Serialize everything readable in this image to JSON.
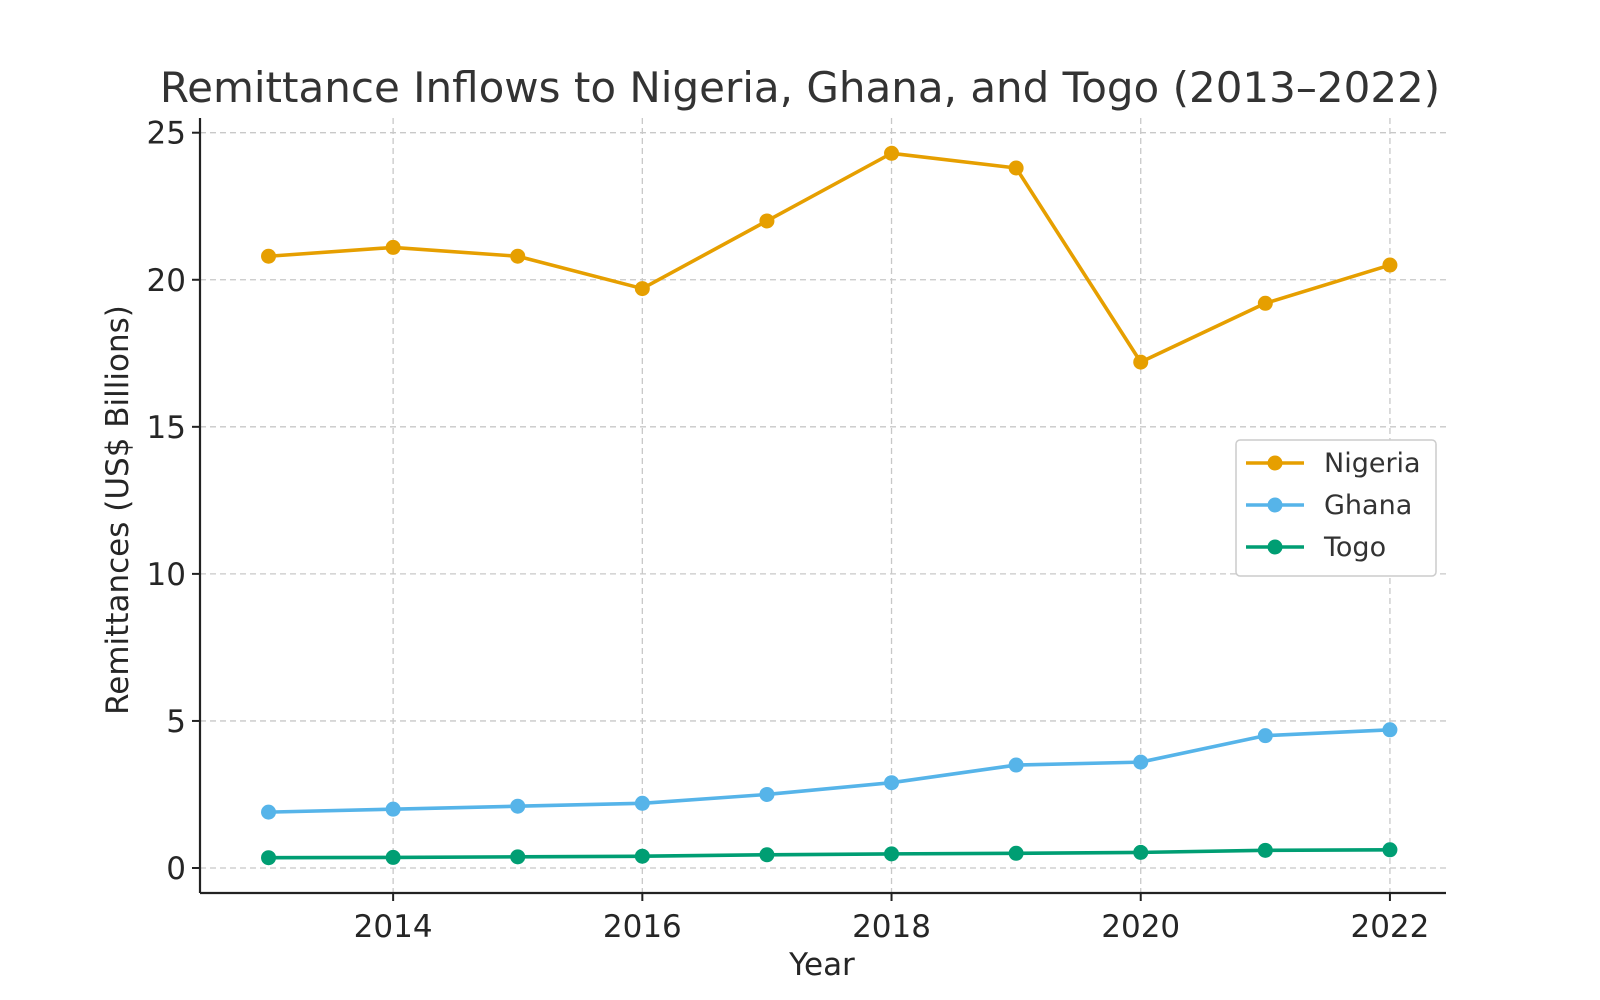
{
  "chart_data": {
    "type": "line",
    "title": "Remittance Inflows to Nigeria, Ghana, and Togo (2013–2022)",
    "xlabel": "Year",
    "ylabel": "Remittances (US$ Billions)",
    "x": [
      2013,
      2014,
      2015,
      2016,
      2017,
      2018,
      2019,
      2020,
      2021,
      2022
    ],
    "xticks": [
      2014,
      2016,
      2018,
      2020,
      2022
    ],
    "yticks": [
      0,
      5,
      10,
      15,
      20,
      25
    ],
    "xlim": [
      2012.45,
      2022.45
    ],
    "ylim": [
      -0.85,
      25.5
    ],
    "grid": true,
    "legend_position": "center-right",
    "series": [
      {
        "name": "Nigeria",
        "color": "#E69F00",
        "values": [
          20.8,
          21.1,
          20.8,
          19.7,
          22.0,
          24.3,
          23.8,
          17.2,
          19.2,
          20.5
        ]
      },
      {
        "name": "Ghana",
        "color": "#56B4E9",
        "values": [
          1.9,
          2.0,
          2.1,
          2.2,
          2.5,
          2.9,
          3.5,
          3.6,
          4.5,
          4.7
        ]
      },
      {
        "name": "Togo",
        "color": "#009E73",
        "values": [
          0.35,
          0.36,
          0.38,
          0.4,
          0.45,
          0.48,
          0.5,
          0.53,
          0.6,
          0.62
        ]
      }
    ]
  }
}
